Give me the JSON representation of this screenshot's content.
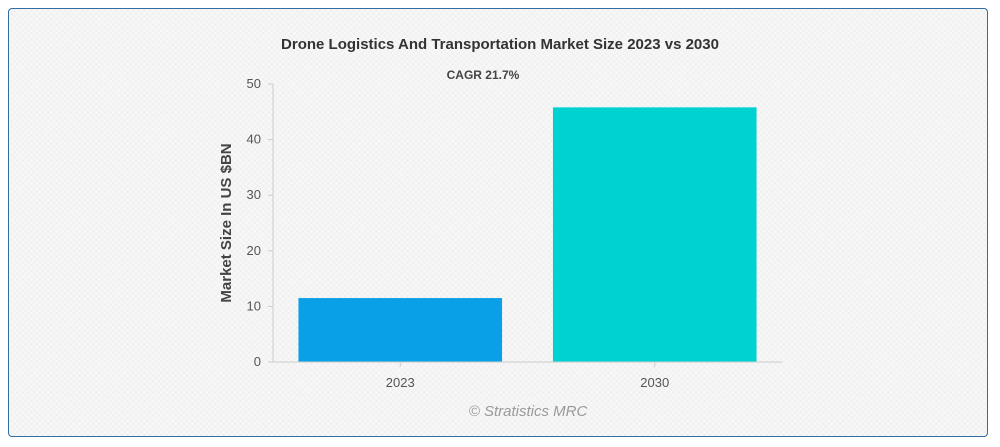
{
  "chart_data": {
    "type": "bar",
    "title": "Drone Logistics And Transportation Market Size 2023 vs 2030",
    "annotation": "CAGR 21.7%",
    "categories": [
      "2023",
      "2030"
    ],
    "values": [
      11.5,
      45.8
    ],
    "colors": [
      "#0aa0e8",
      "#00d1d1"
    ],
    "xlabel": "",
    "ylabel": "Market Size In US $BN",
    "ylim": [
      0,
      50
    ],
    "yticks": [
      0,
      10,
      20,
      30,
      40,
      50
    ],
    "grid": false,
    "legend": "none"
  },
  "watermark": "© Stratistics MRC"
}
